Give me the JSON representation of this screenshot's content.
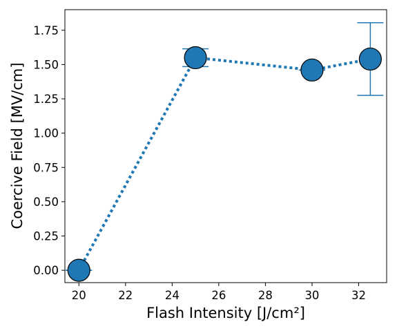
{
  "chart_data": {
    "type": "scatter",
    "title": "",
    "xlabel": "Flash Intensity [J/cm²]",
    "ylabel": "Coercive Field [MV/cm]",
    "xlim": [
      19.4,
      33.2
    ],
    "ylim": [
      -0.09,
      1.9
    ],
    "xticks": [
      20,
      22,
      24,
      26,
      28,
      30,
      32
    ],
    "yticks": [
      0.0,
      0.25,
      0.5,
      0.75,
      1.0,
      1.25,
      1.5,
      1.75
    ],
    "ytick_labels": [
      "0.00",
      "0.25",
      "0.50",
      "0.75",
      "1.00",
      "1.25",
      "1.50",
      "1.75"
    ],
    "grid": false,
    "series": [
      {
        "color": "#1f77b4",
        "marker_edge_color": "#000000",
        "line_style": "dotted",
        "x": [
          20,
          25,
          30,
          32.5
        ],
        "y": [
          0.0,
          1.55,
          1.46,
          1.54
        ],
        "yerr": [
          0.0,
          0.065,
          0.0,
          0.265
        ]
      }
    ]
  }
}
